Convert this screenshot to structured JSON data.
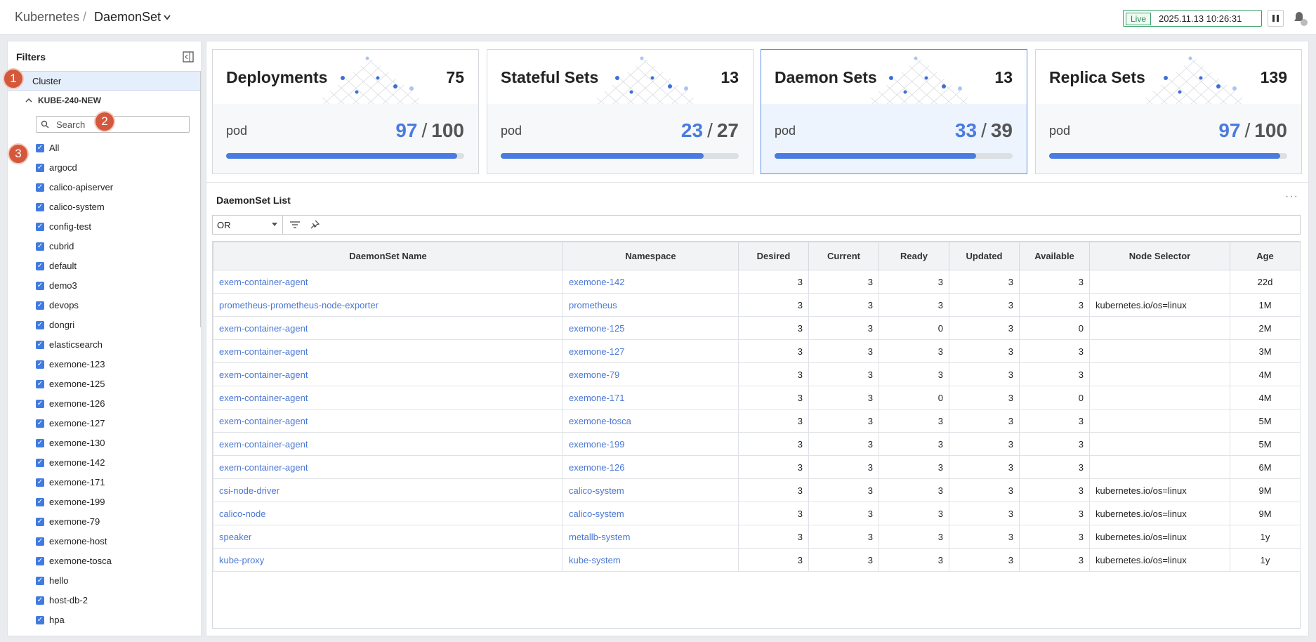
{
  "header": {
    "breadcrumb": "Kubernetes",
    "separator": "/",
    "title": "DaemonSet",
    "live": "Live",
    "datetime": "2025.11.13 10:26:31"
  },
  "sidebar": {
    "title": "Filters",
    "cluster_label": "Cluster",
    "cluster_name": "KUBE-240-NEW",
    "search_placeholder": "Search",
    "namespaces": [
      "All",
      "argocd",
      "calico-apiserver",
      "calico-system",
      "config-test",
      "cubrid",
      "default",
      "demo3",
      "devops",
      "dongri",
      "elasticsearch",
      "exemone-123",
      "exemone-125",
      "exemone-126",
      "exemone-127",
      "exemone-130",
      "exemone-142",
      "exemone-171",
      "exemone-199",
      "exemone-79",
      "exemone-host",
      "exemone-tosca",
      "hello",
      "host-db-2",
      "hpa"
    ]
  },
  "annotations": [
    "1",
    "2",
    "3"
  ],
  "cards": {
    "separator": "/",
    "items": [
      {
        "title": "Deployments",
        "count": 75,
        "label": "pod",
        "current": 97,
        "total": 100
      },
      {
        "title": "Stateful Sets",
        "count": 13,
        "label": "pod",
        "current": 23,
        "total": 27
      },
      {
        "title": "Daemon Sets",
        "count": 13,
        "label": "pod",
        "current": 33,
        "total": 39
      },
      {
        "title": "Replica Sets",
        "count": 139,
        "label": "pod",
        "current": 97,
        "total": 100
      }
    ]
  },
  "table": {
    "title": "DaemonSet List",
    "filter": "OR",
    "columns": [
      "DaemonSet Name",
      "Namespace",
      "Desired",
      "Current",
      "Ready",
      "Updated",
      "Available",
      "Node Selector",
      "Age"
    ],
    "rows": [
      [
        "exem-container-agent",
        "exemone-142",
        3,
        3,
        3,
        3,
        3,
        "",
        "22d"
      ],
      [
        "prometheus-prometheus-node-exporter",
        "prometheus",
        3,
        3,
        3,
        3,
        3,
        "kubernetes.io/os=linux",
        "1M"
      ],
      [
        "exem-container-agent",
        "exemone-125",
        3,
        3,
        0,
        3,
        0,
        "",
        "2M"
      ],
      [
        "exem-container-agent",
        "exemone-127",
        3,
        3,
        3,
        3,
        3,
        "",
        "3M"
      ],
      [
        "exem-container-agent",
        "exemone-79",
        3,
        3,
        3,
        3,
        3,
        "",
        "4M"
      ],
      [
        "exem-container-agent",
        "exemone-171",
        3,
        3,
        0,
        3,
        0,
        "",
        "4M"
      ],
      [
        "exem-container-agent",
        "exemone-tosca",
        3,
        3,
        3,
        3,
        3,
        "",
        "5M"
      ],
      [
        "exem-container-agent",
        "exemone-199",
        3,
        3,
        3,
        3,
        3,
        "",
        "5M"
      ],
      [
        "exem-container-agent",
        "exemone-126",
        3,
        3,
        3,
        3,
        3,
        "",
        "6M"
      ],
      [
        "csi-node-driver",
        "calico-system",
        3,
        3,
        3,
        3,
        3,
        "kubernetes.io/os=linux",
        "9M"
      ],
      [
        "calico-node",
        "calico-system",
        3,
        3,
        3,
        3,
        3,
        "kubernetes.io/os=linux",
        "9M"
      ],
      [
        "speaker",
        "metallb-system",
        3,
        3,
        3,
        3,
        3,
        "kubernetes.io/os=linux",
        "1y"
      ],
      [
        "kube-proxy",
        "kube-system",
        3,
        3,
        3,
        3,
        3,
        "kubernetes.io/os=linux",
        "1y"
      ]
    ]
  }
}
